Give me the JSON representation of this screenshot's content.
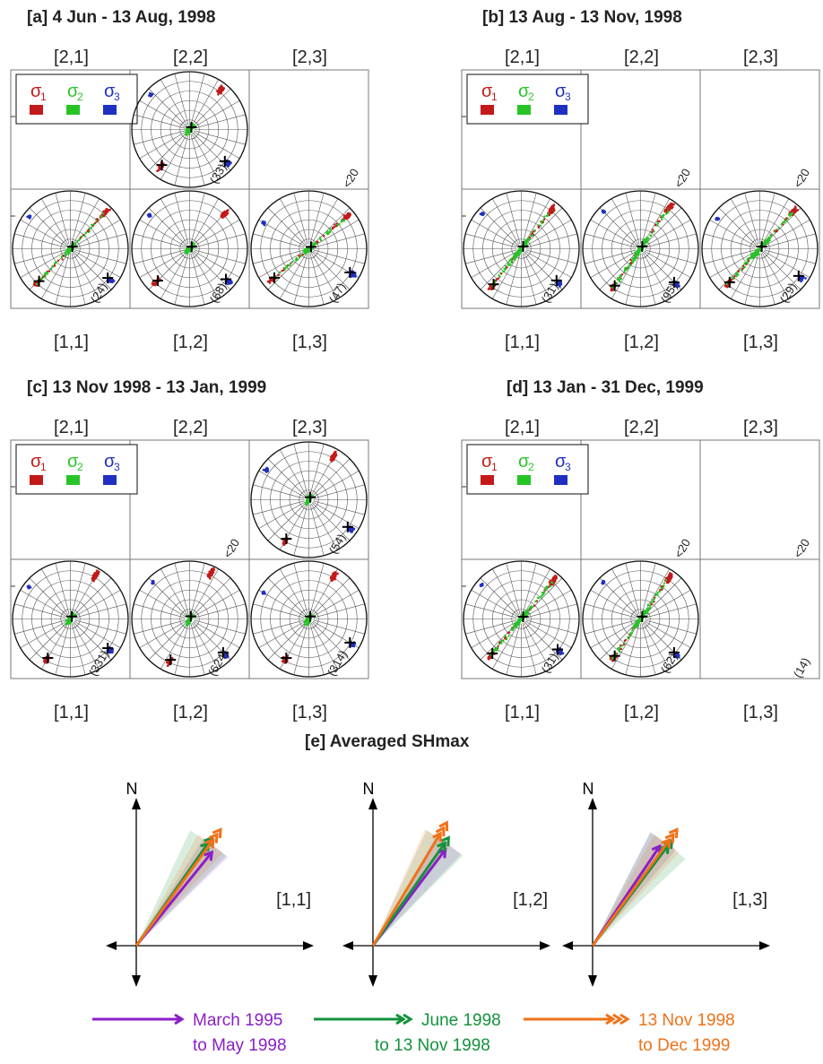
{
  "panels": [
    {
      "title": "[a] 4 Jun - 13 Aug, 1998",
      "top_labels": [
        "[2,1]",
        "[2,2]",
        "[2,3]"
      ],
      "bottom_labels": [
        "[1,1]",
        "[1,2]",
        "[1,3]"
      ],
      "legend": {
        "s1": "σ",
        "s1_sub": "1",
        "s2": "σ",
        "s2_sub": "2",
        "s3": "σ",
        "s3_sub": "3"
      },
      "cells": [
        {
          "key": "2,1",
          "kind": "legend"
        },
        {
          "key": "2,2",
          "kind": "stereo",
          "count": "(33)",
          "s1": 38,
          "s2": 0,
          "s3": 132,
          "wide": 0
        },
        {
          "key": "2,3",
          "kind": "empty",
          "count": "<20"
        },
        {
          "key": "1,1",
          "kind": "stereo",
          "count": "(24)",
          "s1": 44,
          "s2": 0,
          "s3": 128,
          "wide": 1
        },
        {
          "key": "1,2",
          "kind": "stereo",
          "count": "(68)",
          "s1": 45,
          "s2": 0,
          "s3": 130,
          "wide": 0
        },
        {
          "key": "1,3",
          "kind": "stereo",
          "count": "(47)",
          "s1": 50,
          "s2": 0,
          "s3": 120,
          "wide": 1
        }
      ]
    },
    {
      "title": "[b] 13 Aug - 13 Nov, 1998",
      "top_labels": [
        "[2,1]",
        "[2,2]",
        "[2,3]"
      ],
      "bottom_labels": [
        "[1,1]",
        "[1,2]",
        "[1,3]"
      ],
      "legend": {
        "s1": "σ",
        "s1_sub": "1",
        "s2": "σ",
        "s2_sub": "2",
        "s3": "σ",
        "s3_sub": "3"
      },
      "cells": [
        {
          "key": "2,1",
          "kind": "legend"
        },
        {
          "key": "2,2",
          "kind": "empty",
          "count": "<20"
        },
        {
          "key": "2,3",
          "kind": "empty",
          "count": "<20"
        },
        {
          "key": "1,1",
          "kind": "stereo",
          "count": "(31)",
          "s1": 38,
          "s2": 0,
          "s3": 132,
          "wide": 2
        },
        {
          "key": "1,2",
          "kind": "stereo",
          "count": "(95)",
          "s1": 35,
          "s2": 0,
          "s3": 135,
          "wide": 2
        },
        {
          "key": "1,3",
          "kind": "stereo",
          "count": "(29)",
          "s1": 42,
          "s2": 0,
          "s3": 125,
          "wide": 2
        }
      ]
    },
    {
      "title": "[c] 13 Nov 1998 - 13 Jan, 1999",
      "top_labels": [
        "[2,1]",
        "[2,2]",
        "[2,3]"
      ],
      "bottom_labels": [
        "[1,1]",
        "[1,2]",
        "[1,3]"
      ],
      "legend": {
        "s1": "σ",
        "s1_sub": "1",
        "s2": "σ",
        "s2_sub": "2",
        "s3": "σ",
        "s3_sub": "3"
      },
      "cells": [
        {
          "key": "2,1",
          "kind": "legend"
        },
        {
          "key": "2,2",
          "kind": "empty",
          "count": "<20"
        },
        {
          "key": "2,3",
          "kind": "stereo",
          "count": "(54)",
          "s1": 30,
          "s2": 0,
          "s3": 125,
          "wide": 0
        },
        {
          "key": "1,1",
          "kind": "stereo",
          "count": "(331)",
          "s1": 30,
          "s2": 0,
          "s3": 128,
          "wide": 0
        },
        {
          "key": "1,2",
          "kind": "stereo",
          "count": "(624)",
          "s1": 25,
          "s2": 0,
          "s3": 135,
          "wide": 0
        },
        {
          "key": "1,3",
          "kind": "stereo",
          "count": "(314)",
          "s1": 30,
          "s2": 0,
          "s3": 120,
          "wide": 0
        }
      ]
    },
    {
      "title": "[d] 13 Jan - 31 Dec, 1999",
      "top_labels": [
        "[2,1]",
        "[2,2]",
        "[2,3]"
      ],
      "bottom_labels": [
        "[1,1]",
        "[1,2]",
        "[1,3]"
      ],
      "legend": {
        "s1": "σ",
        "s1_sub": "1",
        "s2": "σ",
        "s2_sub": "2",
        "s3": "σ",
        "s3_sub": "3"
      },
      "cells": [
        {
          "key": "2,1",
          "kind": "legend"
        },
        {
          "key": "2,2",
          "kind": "empty",
          "count": "<20"
        },
        {
          "key": "2,3",
          "kind": "empty",
          "count": "<20"
        },
        {
          "key": "1,1",
          "kind": "stereo",
          "count": "(31)",
          "s1": 40,
          "s2": 0,
          "s3": 130,
          "wide": 2
        },
        {
          "key": "1,2",
          "kind": "stereo",
          "count": "(62)",
          "s1": 35,
          "s2": 0,
          "s3": 135,
          "wide": 2
        },
        {
          "key": "1,3",
          "kind": "empty",
          "count": "(14)"
        }
      ]
    }
  ],
  "averaged": {
    "title": "[e] Averaged SHmax",
    "north_label": "N",
    "plots": [
      {
        "label": "[1,1]",
        "azimuths": {
          "purple": 39,
          "green": 35,
          "orange": 36
        }
      },
      {
        "label": "[1,2]",
        "azimuths": {
          "purple": 37,
          "green": 35,
          "orange": 31
        }
      },
      {
        "label": "[1,3]",
        "azimuths": {
          "purple": 34,
          "green": 37,
          "orange": 36
        }
      }
    ],
    "legend": [
      {
        "line1": "March 1995",
        "line2": "to May 1998"
      },
      {
        "line1": "June 1998",
        "line2": "to 13 Nov 1998"
      },
      {
        "line1": "13 Nov 1998",
        "line2": "to Dec 1999"
      }
    ]
  },
  "colors": {
    "sigma1": "#c21a1a",
    "sigma2": "#27c427",
    "sigma3": "#1f2fc2",
    "purple": "#8a1fc9",
    "green": "#13923b",
    "orange": "#f07219"
  }
}
